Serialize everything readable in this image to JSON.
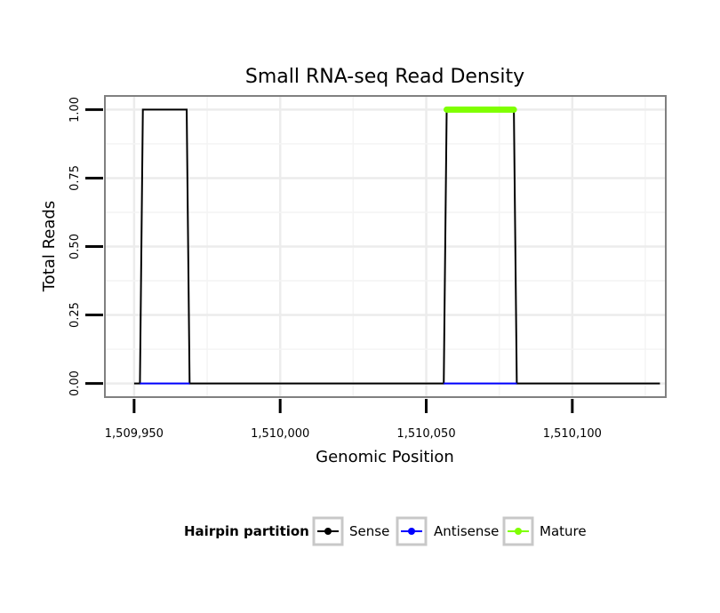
{
  "chart_data": {
    "type": "line",
    "title": "Small RNA-seq Read Density",
    "xlabel": "Genomic Position",
    "ylabel": "Total Reads",
    "xlim": [
      1509940,
      1510132
    ],
    "ylim": [
      -0.05,
      1.05
    ],
    "x_ticks": [
      1509950,
      1510000,
      1510050,
      1510100
    ],
    "x_tick_labels": [
      "1,509,950",
      "1,510,000",
      "1,510,050",
      "1,510,100"
    ],
    "y_ticks": [
      0,
      0.25,
      0.5,
      0.75,
      1.0
    ],
    "y_tick_labels": [
      "0.00",
      "0.25",
      "0.50",
      "0.75",
      "1.00"
    ],
    "grid": true,
    "legend": {
      "title": "Hairpin partition",
      "position": "bottom",
      "items": [
        {
          "label": "Sense",
          "color": "#000000"
        },
        {
          "label": "Antisense",
          "color": "#0000ff"
        },
        {
          "label": "Mature",
          "color": "#7fff00"
        }
      ]
    },
    "series": [
      {
        "name": "Sense",
        "color": "#000000",
        "x": [
          1509950,
          1509952,
          1509953,
          1509968,
          1509969,
          1510056,
          1510057,
          1510080,
          1510081,
          1510130
        ],
        "y": [
          0,
          0,
          1,
          1,
          0,
          0,
          1,
          1,
          0,
          0
        ]
      },
      {
        "name": "Antisense",
        "color": "#0000ff",
        "x": [
          1509952,
          1509969,
          1510056,
          1510081
        ],
        "y": [
          0,
          0,
          0,
          0
        ],
        "segments": [
          [
            1509952,
            1509969
          ],
          [
            1510056,
            1510081
          ]
        ]
      },
      {
        "name": "Mature",
        "color": "#7fff00",
        "x": [
          1510057,
          1510080
        ],
        "y": [
          1,
          1
        ]
      }
    ]
  }
}
